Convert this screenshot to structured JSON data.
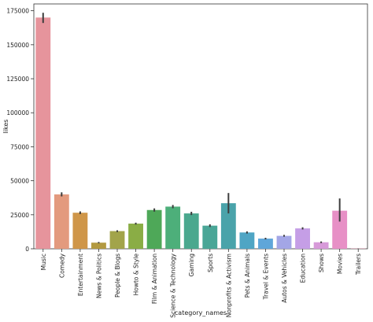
{
  "chart_data": {
    "type": "bar",
    "xlabel": "category_names",
    "ylabel": "likes",
    "ylim": [
      0,
      180000
    ],
    "y_ticks": [
      0,
      25000,
      50000,
      75000,
      100000,
      125000,
      150000,
      175000
    ],
    "y_tick_labels": [
      "0",
      "25000",
      "50000",
      "75000",
      "100000",
      "125000",
      "150000",
      "175000"
    ],
    "grid": false,
    "error_bars": true,
    "categories": [
      "Music",
      "Comedy",
      "Entertainment",
      "News & Politics",
      "People & Blogs",
      "Howto & Style",
      "Film & Animation",
      "Science & Technology",
      "Gaming",
      "Sports",
      "Nonprofits & Activism",
      "Pets & Animals",
      "Travel & Events",
      "Autos & Vehicles",
      "Education",
      "Shows",
      "Movies",
      "Trailers"
    ],
    "values": [
      170000,
      40000,
      26500,
      4500,
      13000,
      18500,
      28500,
      31000,
      26000,
      17000,
      33500,
      12000,
      7500,
      9500,
      15000,
      4800,
      28000,
      200
    ],
    "error_low": [
      166000,
      38500,
      25500,
      4000,
      12300,
      17800,
      27300,
      29800,
      24800,
      16000,
      26000,
      11200,
      6900,
      8900,
      14200,
      4200,
      20000,
      100
    ],
    "error_high": [
      173500,
      41500,
      27500,
      5000,
      13600,
      19200,
      29700,
      32200,
      27200,
      18000,
      41000,
      12800,
      8100,
      10200,
      15800,
      5400,
      37000,
      300
    ],
    "colors": [
      "#e6949c",
      "#e39a7e",
      "#cf9649",
      "#b39a41",
      "#a2a44a",
      "#8aad45",
      "#4ea858",
      "#4daf7a",
      "#4aa88e",
      "#4aa697",
      "#4aa3aa",
      "#4fa5c4",
      "#5fa6d9",
      "#a3a6e6",
      "#c59ee6",
      "#d79ad9",
      "#e790c6",
      "#e88fa8"
    ]
  }
}
